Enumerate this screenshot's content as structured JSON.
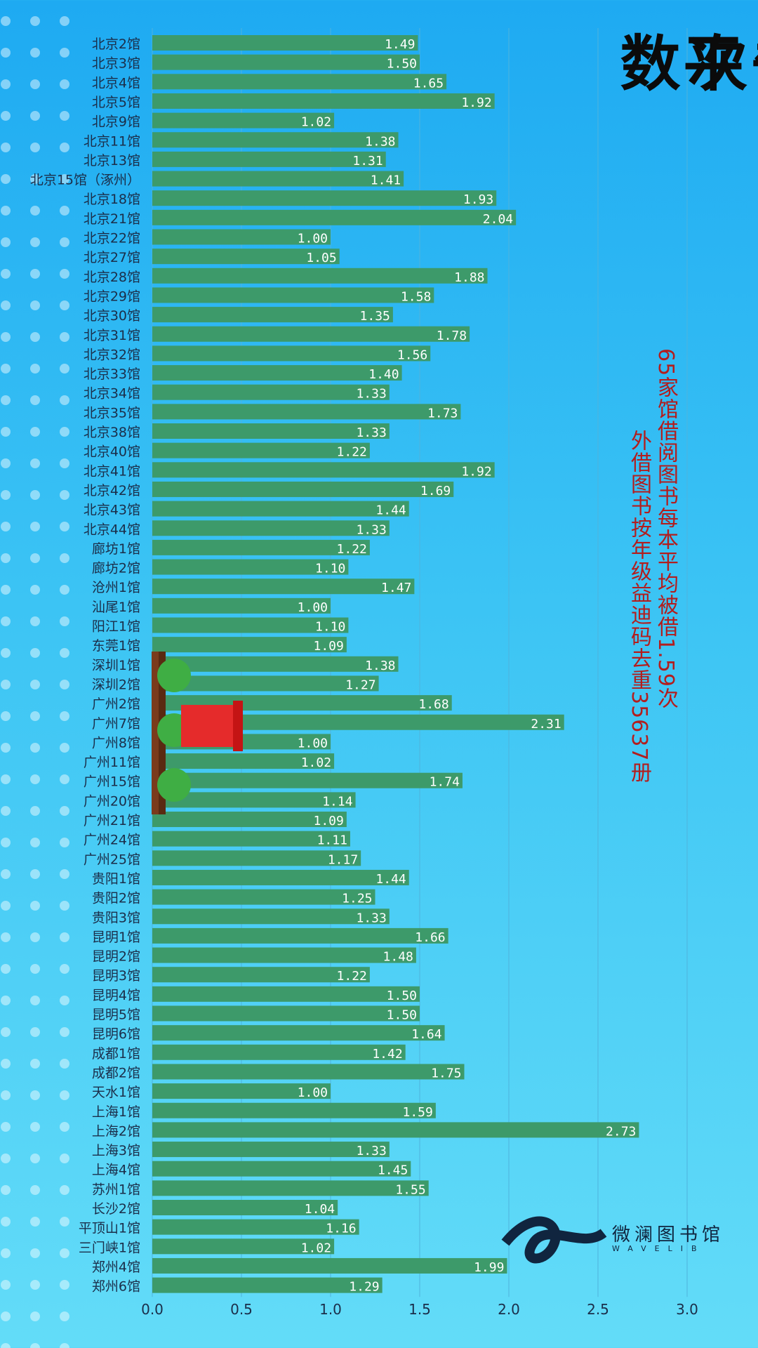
{
  "title": {
    "line1": "单月被借阅图书平",
    "line2": "均被借次数"
  },
  "subtitle": {
    "line1": "65家馆借阅图书每本平均被借1.59次",
    "line2": "外借图书按年级益迪码去重35637册"
  },
  "logo": {
    "name": "微澜图书馆",
    "sub": "WAVELIB"
  },
  "colors": {
    "bar": "#3d9a6a",
    "bar_label": "#ffffff",
    "axis_text": "#1b2e4a",
    "gridline": "#4fb3dc",
    "title": "#0b0b0b",
    "subtitle": "#b31d1d",
    "logo": "#10253f"
  },
  "chart_data": {
    "type": "bar",
    "orientation": "horizontal",
    "xlim": [
      0,
      3.0
    ],
    "x_ticks": [
      "0.0",
      "0.5",
      "1.0",
      "1.5",
      "2.0",
      "2.5",
      "3.0"
    ],
    "grid": true,
    "categories": [
      "北京2馆",
      "北京3馆",
      "北京4馆",
      "北京5馆",
      "北京9馆",
      "北京11馆",
      "北京13馆",
      "北京15馆（涿州）",
      "北京18馆",
      "北京21馆",
      "北京22馆",
      "北京27馆",
      "北京28馆",
      "北京29馆",
      "北京30馆",
      "北京31馆",
      "北京32馆",
      "北京33馆",
      "北京34馆",
      "北京35馆",
      "北京38馆",
      "北京40馆",
      "北京41馆",
      "北京42馆",
      "北京43馆",
      "北京44馆",
      "廊坊1馆",
      "廊坊2馆",
      "沧州1馆",
      "汕尾1馆",
      "阳江1馆",
      "东莞1馆",
      "深圳1馆",
      "深圳2馆",
      "广州2馆",
      "广州7馆",
      "广州8馆",
      "广州11馆",
      "广州15馆",
      "广州20馆",
      "广州21馆",
      "广州24馆",
      "广州25馆",
      "贵阳1馆",
      "贵阳2馆",
      "贵阳3馆",
      "昆明1馆",
      "昆明2馆",
      "昆明3馆",
      "昆明4馆",
      "昆明5馆",
      "昆明6馆",
      "成都1馆",
      "成都2馆",
      "天水1馆",
      "上海1馆",
      "上海2馆",
      "上海3馆",
      "上海4馆",
      "苏州1馆",
      "长沙2馆",
      "平顶山1馆",
      "三门峡1馆",
      "郑州4馆",
      "郑州6馆"
    ],
    "values": [
      1.49,
      1.5,
      1.65,
      1.92,
      1.02,
      1.38,
      1.31,
      1.41,
      1.93,
      2.04,
      1.0,
      1.05,
      1.88,
      1.58,
      1.35,
      1.78,
      1.56,
      1.4,
      1.33,
      1.73,
      1.33,
      1.22,
      1.92,
      1.69,
      1.44,
      1.33,
      1.22,
      1.1,
      1.47,
      1.0,
      1.1,
      1.09,
      1.38,
      1.27,
      1.68,
      2.31,
      1.0,
      1.02,
      1.74,
      1.14,
      1.09,
      1.11,
      1.17,
      1.44,
      1.25,
      1.33,
      1.66,
      1.48,
      1.22,
      1.5,
      1.5,
      1.64,
      1.42,
      1.75,
      1.0,
      1.59,
      2.73,
      1.33,
      1.45,
      1.55,
      1.04,
      1.16,
      1.02,
      1.99,
      1.29
    ],
    "value_labels": [
      "1.49",
      "1.50",
      "1.65",
      "1.92",
      "1.02",
      "1.38",
      "1.31",
      "1.41",
      "1.93",
      "2.04",
      "1.00",
      "1.05",
      "1.88",
      "1.58",
      "1.35",
      "1.78",
      "1.56",
      "1.40",
      "1.33",
      "1.73",
      "1.33",
      "1.22",
      "1.92",
      "1.69",
      "1.44",
      "1.33",
      "1.22",
      "1.10",
      "1.47",
      "1.00",
      "1.10",
      "1.09",
      "1.38",
      "1.27",
      "1.68",
      "2.31",
      "1.00",
      "1.02",
      "1.74",
      "1.14",
      "1.09",
      "1.11",
      "1.17",
      "1.44",
      "1.25",
      "1.33",
      "1.66",
      "1.48",
      "1.22",
      "1.50",
      "1.50",
      "1.64",
      "1.42",
      "1.75",
      "1.00",
      "1.59",
      "2.73",
      "1.33",
      "1.45",
      "1.55",
      "1.04",
      "1.16",
      "1.02",
      "1.99",
      "1.29"
    ]
  }
}
